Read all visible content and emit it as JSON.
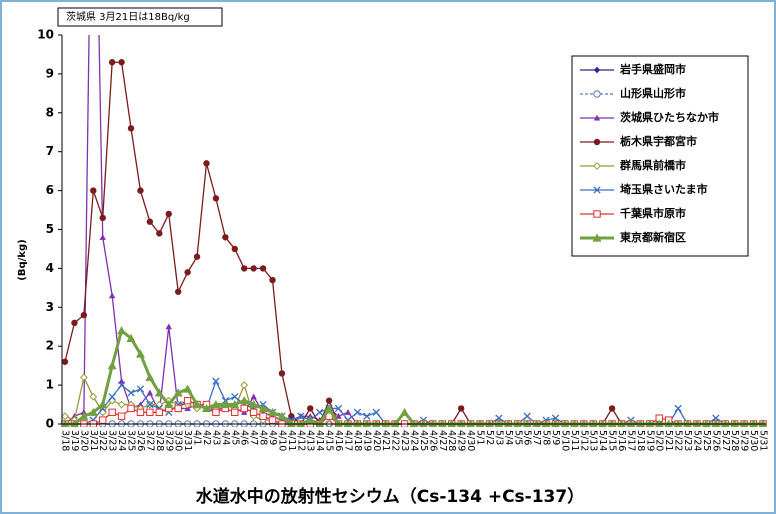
{
  "chart_data": {
    "type": "line",
    "title": "水道水中の放射性セシウム（Cs-134 +Cs-137）",
    "annotation": "茨城県 3月21日は18Bq/kg",
    "y_label": "(Bq/kg)",
    "ylim": [
      0,
      10
    ],
    "yticks": [
      0,
      1,
      2,
      3,
      4,
      5,
      6,
      7,
      8,
      9,
      10
    ],
    "categories": [
      "3/18",
      "3/19",
      "3/20",
      "3/21",
      "3/22",
      "3/23",
      "3/24",
      "3/25",
      "3/26",
      "3/27",
      "3/28",
      "3/29",
      "3/30",
      "3/31",
      "4/1",
      "4/2",
      "4/3",
      "4/4",
      "4/5",
      "4/6",
      "4/7",
      "4/8",
      "4/9",
      "4/10",
      "4/11",
      "4/12",
      "4/13",
      "4/14",
      "4/15",
      "4/16",
      "4/17",
      "4/18",
      "4/19",
      "4/20",
      "4/21",
      "4/22",
      "4/23",
      "4/24",
      "4/25",
      "4/26",
      "4/27",
      "4/28",
      "4/29",
      "4/30",
      "5/1",
      "5/2",
      "5/3",
      "5/4",
      "5/5",
      "5/6",
      "5/7",
      "5/8",
      "5/9",
      "5/10",
      "5/11",
      "5/12",
      "5/13",
      "5/14",
      "5/15",
      "5/16",
      "5/17",
      "5/18",
      "5/19",
      "5/20",
      "5/21",
      "5/22",
      "5/23",
      "5/24",
      "5/25",
      "5/26",
      "5/27",
      "5/28",
      "5/29",
      "5/30",
      "5/31"
    ],
    "series": [
      {
        "name": "岩手県盛岡市",
        "color": "#2b2b8f",
        "marker": "diamond",
        "values": [
          0,
          0,
          0,
          0,
          0,
          0,
          0,
          0,
          0,
          0,
          0,
          0,
          0,
          0,
          0,
          0,
          0,
          0,
          0,
          0,
          0,
          0,
          0,
          0,
          0,
          0,
          0,
          0,
          0,
          0,
          0,
          0,
          0,
          0,
          0,
          0,
          0,
          0,
          0,
          0,
          0,
          0,
          0,
          0,
          0,
          0,
          0,
          0,
          0,
          0,
          0,
          0,
          0,
          0,
          0,
          0,
          0,
          0,
          0,
          0,
          0,
          0,
          0,
          0,
          0,
          0,
          0,
          0,
          0,
          0,
          0,
          0,
          0,
          0,
          0
        ]
      },
      {
        "name": "山形県山形市",
        "color": "#5b7bc0",
        "marker": "circle-open",
        "dash": true,
        "values": [
          0,
          0,
          0,
          0,
          0,
          0,
          0,
          0,
          0,
          0,
          0,
          0,
          0,
          0,
          0,
          0,
          0,
          0,
          0,
          0,
          0,
          0,
          0,
          0,
          0,
          0,
          0,
          0,
          0,
          0,
          0,
          0,
          0,
          0,
          0,
          0,
          0,
          0,
          0,
          0,
          0,
          0,
          0,
          0,
          0,
          0,
          0,
          0,
          0,
          0,
          0,
          0,
          0,
          0,
          0,
          0,
          0,
          0,
          0,
          0,
          0,
          0,
          0,
          0,
          0,
          0,
          0,
          0,
          0,
          0,
          0,
          0,
          0,
          0,
          0
        ]
      },
      {
        "name": "茨城県ひたちなか市",
        "color": "#8030b0",
        "marker": "triangle",
        "values": [
          0,
          0.2,
          0.3,
          18,
          4.8,
          3.3,
          1.1,
          0.4,
          0.5,
          0.8,
          0.3,
          2.5,
          0.4,
          0.4,
          0.5,
          0.4,
          0.3,
          0.5,
          0.4,
          0.3,
          0.7,
          0.3,
          0.2,
          0.1,
          0,
          0.2,
          0.2,
          0.1,
          0.4,
          0.2,
          0.3,
          0,
          0,
          0,
          0,
          0,
          0,
          0,
          0,
          0,
          0,
          0,
          0,
          0,
          0,
          0,
          0,
          0,
          0,
          0,
          0,
          0,
          0,
          0,
          0,
          0,
          0,
          0,
          0,
          0,
          0,
          0,
          0,
          0,
          0,
          0,
          0,
          0,
          0,
          0,
          0,
          0,
          0,
          0,
          0
        ]
      },
      {
        "name": "栃木県宇都宮市",
        "color": "#7b1c1c",
        "marker": "circle",
        "values": [
          1.6,
          2.6,
          2.8,
          6.0,
          5.3,
          9.3,
          9.3,
          7.6,
          6.0,
          5.2,
          4.9,
          5.4,
          3.4,
          3.9,
          4.3,
          6.7,
          5.8,
          4.8,
          4.5,
          4.0,
          4.0,
          4.0,
          3.7,
          1.3,
          0.2,
          0,
          0.4,
          0,
          0.6,
          0,
          0,
          0,
          0,
          0,
          0,
          0,
          0,
          0,
          0,
          0,
          0,
          0,
          0.4,
          0,
          0,
          0,
          0,
          0,
          0,
          0,
          0,
          0,
          0,
          0,
          0,
          0,
          0,
          0,
          0.4,
          0,
          0,
          0,
          0,
          0,
          0,
          0,
          0,
          0,
          0,
          0,
          0,
          0,
          0,
          0,
          0
        ]
      },
      {
        "name": "群馬県前橋市",
        "color": "#9a9a3a",
        "marker": "diamond-open",
        "values": [
          0.2,
          0.1,
          1.2,
          0.7,
          0.3,
          0.6,
          0.5,
          0.5,
          0.4,
          0.5,
          0.5,
          0.6,
          0.5,
          0.5,
          0.4,
          0.5,
          0.4,
          0.5,
          0.4,
          1.0,
          0.2,
          0.1,
          0.1,
          0,
          0,
          0,
          0,
          0,
          0,
          0,
          0,
          0,
          0,
          0,
          0,
          0,
          0,
          0,
          0,
          0,
          0,
          0,
          0,
          0,
          0,
          0,
          0,
          0,
          0,
          0,
          0,
          0,
          0,
          0,
          0,
          0,
          0,
          0,
          0,
          0,
          0,
          0,
          0,
          0,
          0,
          0,
          0,
          0,
          0,
          0,
          0,
          0,
          0,
          0,
          0
        ]
      },
      {
        "name": "埼玉県さいたま市",
        "color": "#3a6fc4",
        "marker": "x",
        "values": [
          0,
          0,
          0,
          0.1,
          0.4,
          0.7,
          1.0,
          0.8,
          0.9,
          0.5,
          0.4,
          0.3,
          0.5,
          0.6,
          0.5,
          0.4,
          1.1,
          0.6,
          0.7,
          0.5,
          0.4,
          0.5,
          0.3,
          0.2,
          0.1,
          0.2,
          0.1,
          0.3,
          0.4,
          0.4,
          0.1,
          0.3,
          0.2,
          0.3,
          0,
          0,
          0,
          0,
          0.1,
          0,
          0,
          0,
          0,
          0,
          0,
          0,
          0.15,
          0,
          0,
          0.2,
          0,
          0.1,
          0.15,
          0,
          0,
          0,
          0,
          0,
          0,
          0,
          0.1,
          0,
          0,
          0,
          0,
          0.4,
          0,
          0,
          0,
          0.15,
          0,
          0,
          0,
          0,
          0
        ]
      },
      {
        "name": "千葉県市原市",
        "color": "#e03030",
        "marker": "square-open",
        "values": [
          0,
          0,
          0,
          0,
          0.1,
          0.3,
          0.2,
          0.4,
          0.3,
          0.3,
          0.3,
          0.4,
          0.4,
          0.6,
          0.5,
          0.5,
          0.3,
          0.4,
          0.3,
          0.4,
          0.3,
          0.2,
          0.1,
          0,
          0,
          0,
          0,
          0,
          0.2,
          0,
          0,
          0,
          0,
          0,
          0,
          0,
          0,
          0,
          0,
          0,
          0,
          0,
          0,
          0,
          0,
          0,
          0,
          0,
          0,
          0,
          0,
          0,
          0,
          0,
          0,
          0,
          0,
          0,
          0,
          0,
          0,
          0,
          0,
          0.15,
          0.1,
          0,
          0,
          0,
          0,
          0,
          0,
          0,
          0,
          0,
          0
        ]
      },
      {
        "name": "東京都新宿区",
        "color": "#70a040",
        "marker": "triangle",
        "bold": true,
        "values": [
          0,
          0,
          0.2,
          0.3,
          0.5,
          1.5,
          2.4,
          2.2,
          1.8,
          1.2,
          0.8,
          0.5,
          0.8,
          0.9,
          0.5,
          0.4,
          0.5,
          0.5,
          0.5,
          0.6,
          0.5,
          0.4,
          0.3,
          0.2,
          0,
          0,
          0.1,
          0,
          0.4,
          0,
          0,
          0,
          0,
          0,
          0,
          0,
          0.3,
          0,
          0,
          0,
          0,
          0,
          0,
          0,
          0,
          0,
          0,
          0,
          0,
          0,
          0,
          0,
          0,
          0,
          0,
          0,
          0,
          0,
          0,
          0,
          0,
          0,
          0,
          0,
          0,
          0,
          0,
          0,
          0,
          0,
          0,
          0,
          0,
          0,
          0
        ]
      }
    ]
  }
}
